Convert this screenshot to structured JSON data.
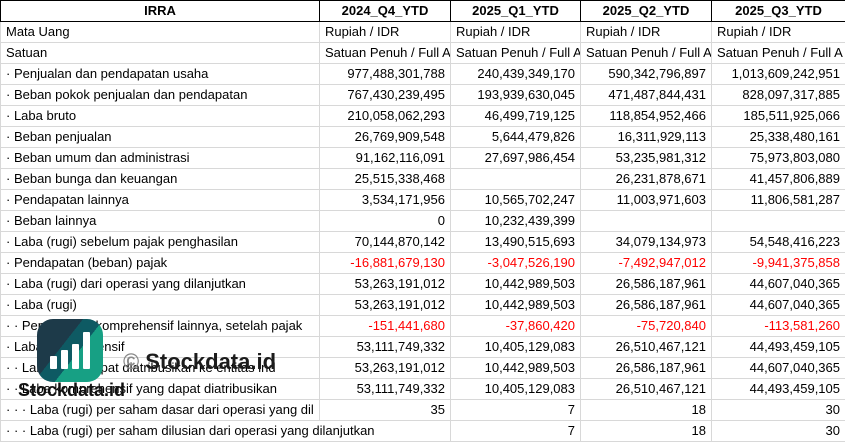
{
  "table": {
    "columns": [
      "IRRA",
      "2024_Q4_YTD",
      "2025_Q1_YTD",
      "2025_Q2_YTD",
      "2025_Q3_YTD"
    ],
    "negative_color": "#ff0000",
    "rows": [
      {
        "label": "Mata Uang",
        "align": "left",
        "values": [
          "Rupiah / IDR",
          "Rupiah / IDR",
          "Rupiah / IDR",
          "Rupiah / IDR"
        ]
      },
      {
        "label": "Satuan",
        "align": "left",
        "values": [
          "Satuan Penuh / Full A",
          "Satuan Penuh / Full A",
          "Satuan Penuh / Full A",
          "Satuan Penuh / Full A"
        ]
      },
      {
        "label": "· Penjualan dan pendapatan usaha",
        "values": [
          "977,488,301,788",
          "240,439,349,170",
          "590,342,796,897",
          "1,013,609,242,951"
        ]
      },
      {
        "label": "· Beban pokok penjualan dan pendapatan",
        "values": [
          "767,430,239,495",
          "193,939,630,045",
          "471,487,844,431",
          "828,097,317,885"
        ]
      },
      {
        "label": "· Laba bruto",
        "values": [
          "210,058,062,293",
          "46,499,719,125",
          "118,854,952,466",
          "185,511,925,066"
        ]
      },
      {
        "label": "· Beban penjualan",
        "values": [
          "26,769,909,548",
          "5,644,479,826",
          "16,311,929,113",
          "25,338,480,161"
        ]
      },
      {
        "label": "· Beban umum dan administrasi",
        "values": [
          "91,162,116,091",
          "27,697,986,454",
          "53,235,981,312",
          "75,973,803,080"
        ]
      },
      {
        "label": "· Beban bunga dan keuangan",
        "values": [
          "25,515,338,468",
          "",
          "26,231,878,671",
          "41,457,806,889"
        ]
      },
      {
        "label": "· Pendapatan lainnya",
        "values": [
          "3,534,171,956",
          "10,565,702,247",
          "11,003,971,603",
          "11,806,581,287"
        ]
      },
      {
        "label": "· Beban lainnya",
        "values": [
          "0",
          "10,232,439,399",
          "",
          ""
        ]
      },
      {
        "label": "· Laba (rugi) sebelum pajak penghasilan",
        "values": [
          "70,144,870,142",
          "13,490,515,693",
          "34,079,134,973",
          "54,548,416,223"
        ]
      },
      {
        "label": "· Pendapatan (beban) pajak",
        "values": [
          "-16,881,679,130",
          "-3,047,526,190",
          "-7,492,947,012",
          "-9,941,375,858"
        ]
      },
      {
        "label": "· Laba (rugi) dari operasi yang dilanjutkan",
        "values": [
          "53,263,191,012",
          "10,442,989,503",
          "26,586,187,961",
          "44,607,040,365"
        ]
      },
      {
        "label": "· Laba (rugi)",
        "values": [
          "53,263,191,012",
          "10,442,989,503",
          "26,586,187,961",
          "44,607,040,365"
        ]
      },
      {
        "label": "· · Pendapatan komprehensif lainnya, setelah pajak",
        "values": [
          "-151,441,680",
          "-37,860,420",
          "-75,720,840",
          "-113,581,260"
        ]
      },
      {
        "label": "· Laba komprehensif",
        "values": [
          "53,111,749,332",
          "10,405,129,083",
          "26,510,467,121",
          "44,493,459,105"
        ]
      },
      {
        "label": "· · Laba yang dapat diatribusikan ke entitas ind",
        "values": [
          "53,263,191,012",
          "10,442,989,503",
          "26,586,187,961",
          "44,607,040,365"
        ]
      },
      {
        "label": "· · Laba komprehensif yang dapat diatribusikan",
        "values": [
          "53,111,749,332",
          "10,405,129,083",
          "26,510,467,121",
          "44,493,459,105"
        ]
      },
      {
        "label": "· · · Laba (rugi) per saham dasar dari operasi yang dil",
        "values": [
          "35",
          "7",
          "18",
          "30"
        ]
      },
      {
        "label": "· · · Laba (rugi) per saham dilusian dari operasi yang dilanjutkan",
        "label_colspan": 2,
        "values": [
          "7",
          "18",
          "30"
        ]
      }
    ]
  },
  "watermarks": {
    "copyright_symbol": "©",
    "copyright_brand": "Stockdata.id",
    "bottom_brand": "Stockdata.id",
    "logo_icon": "bar-chart-logo-icon",
    "logo_colors": {
      "dark": "#1d3a49",
      "mid": "#0e5a63",
      "teal": "#17a084",
      "bars": "#ffffff"
    }
  }
}
